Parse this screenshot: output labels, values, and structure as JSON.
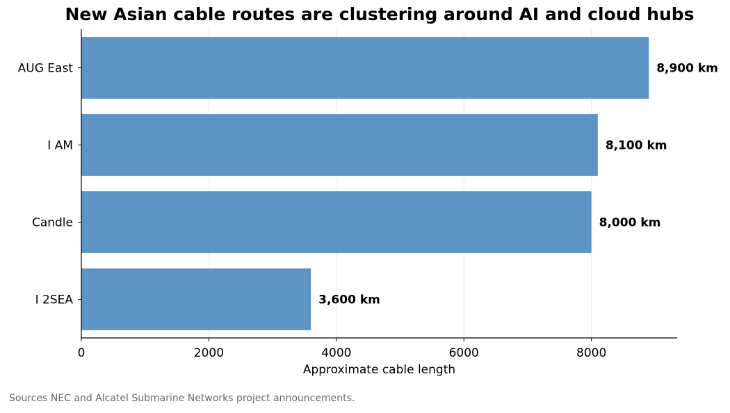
{
  "chart_data": {
    "type": "bar",
    "orientation": "horizontal",
    "title": "New Asian cable routes are clustering around AI and cloud hubs",
    "xlabel": "Approximate cable length",
    "ylabel": "",
    "categories": [
      "AUG East",
      "I AM",
      "Candle",
      "I 2SEA"
    ],
    "values": [
      8900,
      8100,
      8000,
      3600
    ],
    "value_labels": [
      "8,900 km",
      "8,100 km",
      "8,000 km",
      "3,600 km"
    ],
    "xlim": [
      0,
      9345
    ],
    "xticks": [
      0,
      2000,
      4000,
      6000,
      8000
    ],
    "xtick_labels": [
      "0",
      "2000",
      "4000",
      "6000",
      "8000"
    ],
    "grid": "vertical",
    "bar_color": "#5b94c5",
    "grid_color": "#ebebeb"
  },
  "footer": {
    "source": "Sources NEC and Alcatel Submarine Networks project announcements."
  }
}
